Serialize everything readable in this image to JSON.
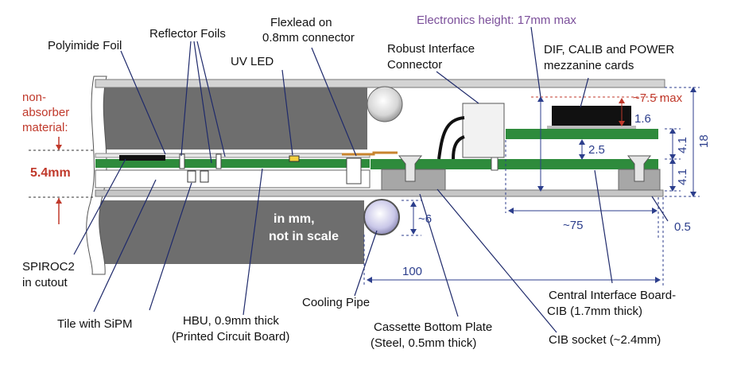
{
  "colors": {
    "absorber": "#6e6e6e",
    "pcb": "#2e8b3c",
    "steel": "#bdbdbd",
    "dim": "#2c3e8c",
    "leader": "#1f2a6b",
    "red": "#c0392b",
    "purple": "#7b4f9a"
  },
  "labels": {
    "polyimide_foil": "Polyimide Foil",
    "reflector_foils": "Reflector Foils",
    "flexlead_1": "Flexlead on",
    "flexlead_2": "0.8mm connector",
    "uv_led": "UV LED",
    "electronics_height": "Electronics height: 17mm max",
    "robust_1": "Robust Interface",
    "robust_2": "Connector",
    "dif_1": "DIF, CALIB and POWER",
    "dif_2": "mezzanine cards",
    "non_abs_1": "non-",
    "non_abs_2": "absorber",
    "non_abs_3": "material:",
    "thickness": "5.4mm",
    "in_mm_1": "in mm,",
    "in_mm_2": "not in scale",
    "spiroc_1": "SPIROC2",
    "spiroc_2": "in cutout",
    "tile": "Tile with SiPM",
    "hbu_1": "HBU, 0.9mm thick",
    "hbu_2": "(Printed Circuit Board)",
    "cooling": "Cooling Pipe",
    "cassette_1": "Cassette Bottom Plate",
    "cassette_2": "(Steel, 0.5mm thick)",
    "cib_socket": "CIB socket (~2.4mm)",
    "cib_1": "Central Interface Board-",
    "cib_2": "CIB (1.7mm thick)"
  },
  "dimensions": {
    "d_7_5": "~7.5 max",
    "d_1_6": "1.6",
    "d_2_5": "2.5",
    "d_4_1a": "4.1",
    "d_4_1b": "4.1",
    "d_18": "18",
    "d_6": "~6",
    "d_75": "~75",
    "d_0_5": "0.5",
    "d_100": "100"
  }
}
